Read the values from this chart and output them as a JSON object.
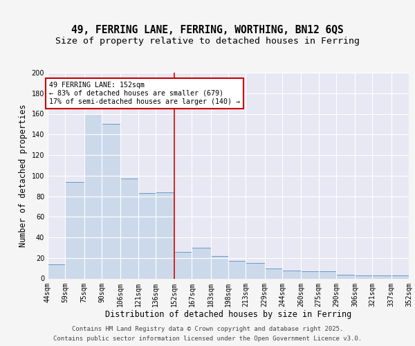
{
  "title1": "49, FERRING LANE, FERRING, WORTHING, BN12 6QS",
  "title2": "Size of property relative to detached houses in Ferring",
  "xlabel": "Distribution of detached houses by size in Ferring",
  "ylabel": "Number of detached properties",
  "bin_labels": [
    "44sqm",
    "59sqm",
    "75sqm",
    "90sqm",
    "106sqm",
    "121sqm",
    "136sqm",
    "152sqm",
    "167sqm",
    "183sqm",
    "198sqm",
    "213sqm",
    "229sqm",
    "244sqm",
    "260sqm",
    "275sqm",
    "290sqm",
    "306sqm",
    "321sqm",
    "337sqm",
    "352sqm"
  ],
  "bin_edges": [
    44,
    59,
    75,
    90,
    106,
    121,
    136,
    152,
    167,
    183,
    198,
    213,
    229,
    244,
    260,
    275,
    290,
    306,
    321,
    337,
    352
  ],
  "bar_heights": [
    14,
    94,
    160,
    150,
    97,
    83,
    84,
    26,
    30,
    22,
    17,
    15,
    10,
    8,
    7,
    7,
    4,
    3,
    3,
    3
  ],
  "bar_color": "#ccd9ea",
  "bar_edge_color": "#6699cc",
  "red_line_x": 152,
  "annotation_line1": "49 FERRING LANE: 152sqm",
  "annotation_line2": "← 83% of detached houses are smaller (679)",
  "annotation_line3": "17% of semi-detached houses are larger (140) →",
  "annotation_box_color": "#ffffff",
  "annotation_box_edge": "#cc0000",
  "annotation_text_color": "#000000",
  "ylim": [
    0,
    200
  ],
  "yticks": [
    0,
    20,
    40,
    60,
    80,
    100,
    120,
    140,
    160,
    180,
    200
  ],
  "background_color": "#e8e8f0",
  "plot_bg_color": "#e8e8f4",
  "grid_color": "#ffffff",
  "footer1": "Contains HM Land Registry data © Crown copyright and database right 2025.",
  "footer2": "Contains public sector information licensed under the Open Government Licence v3.0.",
  "fig_bg": "#f5f5f5",
  "title_fontsize": 10.5,
  "subtitle_fontsize": 9.5,
  "axis_label_fontsize": 8.5,
  "tick_fontsize": 7,
  "footer_fontsize": 6.5
}
